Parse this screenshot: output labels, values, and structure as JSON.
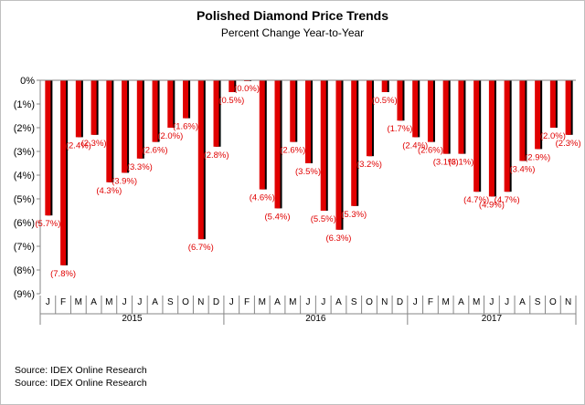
{
  "chart_data": {
    "type": "bar",
    "title": "Polished Diamond Price Trends",
    "subtitle": "Percent Change Year-to-Year",
    "xlabel": "",
    "ylabel": "",
    "ylim": [
      -9,
      0
    ],
    "ytick_labels": [
      "0%",
      "(1%)",
      "(2%)",
      "(3%)",
      "(4%)",
      "(5%)",
      "(6%)",
      "(7%)",
      "(8%)",
      "(9%)"
    ],
    "bar_color": "#e00000",
    "label_color": "#e00000",
    "grid": false,
    "groups": [
      {
        "label": "2015",
        "months": [
          "J",
          "F",
          "M",
          "A",
          "M",
          "J",
          "J",
          "A",
          "S",
          "O",
          "N",
          "D"
        ]
      },
      {
        "label": "2016",
        "months": [
          "J",
          "F",
          "M",
          "A",
          "M",
          "J",
          "J",
          "A",
          "S",
          "O",
          "N",
          "D"
        ]
      },
      {
        "label": "2017",
        "months": [
          "J",
          "F",
          "M",
          "A",
          "M",
          "J",
          "J",
          "A",
          "S",
          "O",
          "N"
        ]
      }
    ],
    "values": [
      -5.7,
      -7.8,
      -2.4,
      -2.3,
      -4.3,
      -3.9,
      -3.3,
      -2.6,
      -2.0,
      -1.6,
      -6.7,
      -2.8,
      -0.5,
      -0.0,
      -4.6,
      -5.4,
      -2.6,
      -3.5,
      -5.5,
      -6.3,
      -5.3,
      -3.2,
      -0.5,
      -1.7,
      -2.4,
      -2.6,
      -3.1,
      -3.1,
      -4.7,
      -4.9,
      -4.7,
      -3.4,
      -2.9,
      -2.0,
      -2.3
    ],
    "data_labels": [
      "(5.7%)",
      "(7.8%)",
      "(2.4%)",
      "(2.3%)",
      "(4.3%)",
      "(3.9%)",
      "(3.3%)",
      "(2.6%)",
      "(2.0%)",
      "(1.6%)",
      "(6.7%)",
      "(2.8%)",
      "(0.5%)",
      "(0.0%)",
      "(4.6%)",
      "(5.4%)",
      "(2.6%)",
      "(3.5%)",
      "(5.5%)",
      "(6.3%)",
      "(5.3%)",
      "(3.2%)",
      "(0.5%)",
      "(1.7%)",
      "(2.4%)",
      "(2.6%)",
      "(3.1%)",
      "(3.1%)",
      "(4.7%)",
      "(4.9%)",
      "(4.7%)",
      "(3.4%)",
      "(2.9%)",
      "(2.0%)",
      "(2.3%)"
    ]
  },
  "sources": [
    "Source: IDEX Online Research",
    "Source: IDEX Online Research"
  ]
}
